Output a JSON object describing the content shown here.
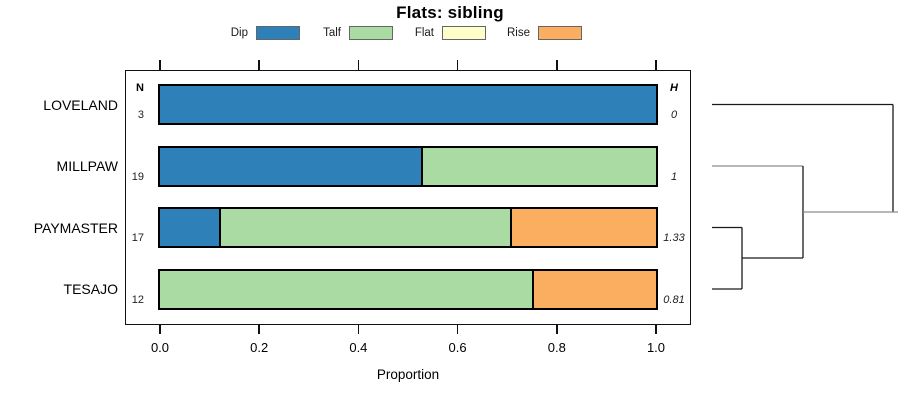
{
  "title": "Flats: sibling",
  "chart_data": {
    "type": "bar",
    "orientation": "horizontal",
    "stacked": true,
    "title": "Flats: sibling",
    "xlabel": "Proportion",
    "xlim": [
      0,
      1
    ],
    "x_ticks": [
      "0.0",
      "0.2",
      "0.4",
      "0.6",
      "0.8",
      "1.0"
    ],
    "grid": false,
    "n_header": "N",
    "h_header": "H",
    "categories": [
      "LOVELAND",
      "MILLPAW",
      "PAYMASTER",
      "TESAJO"
    ],
    "n_values": [
      3,
      19,
      17,
      12
    ],
    "h_values": [
      "0",
      "1",
      "1.33",
      "0.81"
    ],
    "series": [
      {
        "name": "Dip",
        "color": "#2E80B9",
        "values": [
          1,
          0.526,
          0.118,
          0
        ]
      },
      {
        "name": "Talf",
        "color": "#A9DBA2",
        "values": [
          0,
          0.474,
          0.588,
          0.75
        ]
      },
      {
        "name": "Flat",
        "color": "#FFFFC9",
        "values": [
          0,
          0,
          0,
          0
        ]
      },
      {
        "name": "Rise",
        "color": "#FBAD60",
        "values": [
          0,
          0,
          0.294,
          0.25
        ]
      }
    ],
    "legend": [
      "Dip",
      "Talf",
      "Flat",
      "Rise"
    ],
    "legend_position": "top",
    "dendrogram": {
      "side": "right",
      "leaf_order": [
        "LOVELAND",
        "MILLPAW",
        "PAYMASTER",
        "TESAJO"
      ],
      "newick": "(LOVELAND,(MILLPAW,(PAYMASTER,TESAJO)));"
    }
  },
  "colors": {
    "bar_border": "#000000",
    "box_border": "#111111",
    "dendro_line_dark": "#1a1a1a",
    "dendro_line_light": "#8c8c8c"
  }
}
